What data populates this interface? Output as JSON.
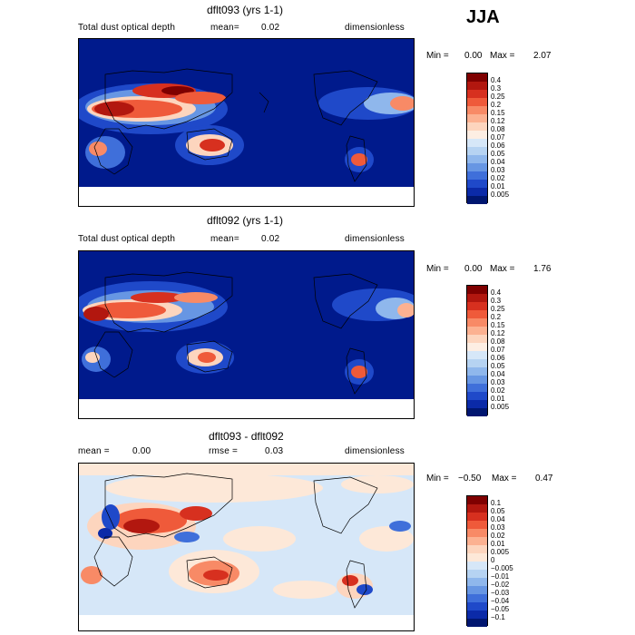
{
  "season": "JJA",
  "panels": [
    {
      "title": "dflt093 (yrs 1-1)",
      "stats_left_label": "Total dust optical depth",
      "stat_label": "mean=",
      "stat_value": "0.02",
      "units": "dimensionless",
      "min_label": "Min =",
      "min_value": "0.00",
      "max_label": "Max =",
      "max_value": "2.07",
      "colorbar_ticks": [
        "0.4",
        "0.3",
        "0.25",
        "0.2",
        "0.15",
        "0.12",
        "0.08",
        "0.07",
        "0.06",
        "0.05",
        "0.04",
        "0.03",
        "0.02",
        "0.01",
        "0.005"
      ]
    },
    {
      "title": "dflt092 (yrs 1-1)",
      "stats_left_label": "Total dust optical depth",
      "stat_label": "mean=",
      "stat_value": "0.02",
      "units": "dimensionless",
      "min_label": "Min =",
      "min_value": "0.00",
      "max_label": "Max =",
      "max_value": "1.76",
      "colorbar_ticks": [
        "0.4",
        "0.3",
        "0.25",
        "0.2",
        "0.15",
        "0.12",
        "0.08",
        "0.07",
        "0.06",
        "0.05",
        "0.04",
        "0.03",
        "0.02",
        "0.01",
        "0.005"
      ]
    },
    {
      "title": "dflt093 - dflt092",
      "mean_label": "mean =",
      "mean_value": "0.00",
      "rmse_label": "rmse =",
      "rmse_value": "0.03",
      "units": "dimensionless",
      "min_label": "Min =",
      "min_value": "−0.50",
      "max_label": "Max =",
      "max_value": "0.47",
      "colorbar_ticks": [
        "0.1",
        "0.05",
        "0.04",
        "0.03",
        "0.02",
        "0.01",
        "0.005",
        "0",
        "−0.005",
        "−0.01",
        "−0.02",
        "−0.03",
        "−0.04",
        "−0.05",
        "−0.1"
      ]
    }
  ],
  "colors": {
    "abs_scale": [
      "#7f0000",
      "#b2170f",
      "#d7301f",
      "#ef5a3a",
      "#f88a66",
      "#fcb191",
      "#fdd5be",
      "#fdeee3",
      "#d6e7f8",
      "#b6d3f2",
      "#8fb7ec",
      "#6796e3",
      "#3f6fda",
      "#1f49c9",
      "#0b2aa8",
      "#001670"
    ],
    "diff_scale": [
      "#7f0000",
      "#b2170f",
      "#d7301f",
      "#ef5a3a",
      "#f88a66",
      "#fcb191",
      "#fdd5be",
      "#fde8d8",
      "#d6e7f8",
      "#b6d3f2",
      "#8fb7ec",
      "#6796e3",
      "#3f6fda",
      "#1f49c9",
      "#0b2aa8",
      "#001670"
    ],
    "ocean_abs": "#001a8c",
    "ocean_diff": "#d6e7f8"
  }
}
